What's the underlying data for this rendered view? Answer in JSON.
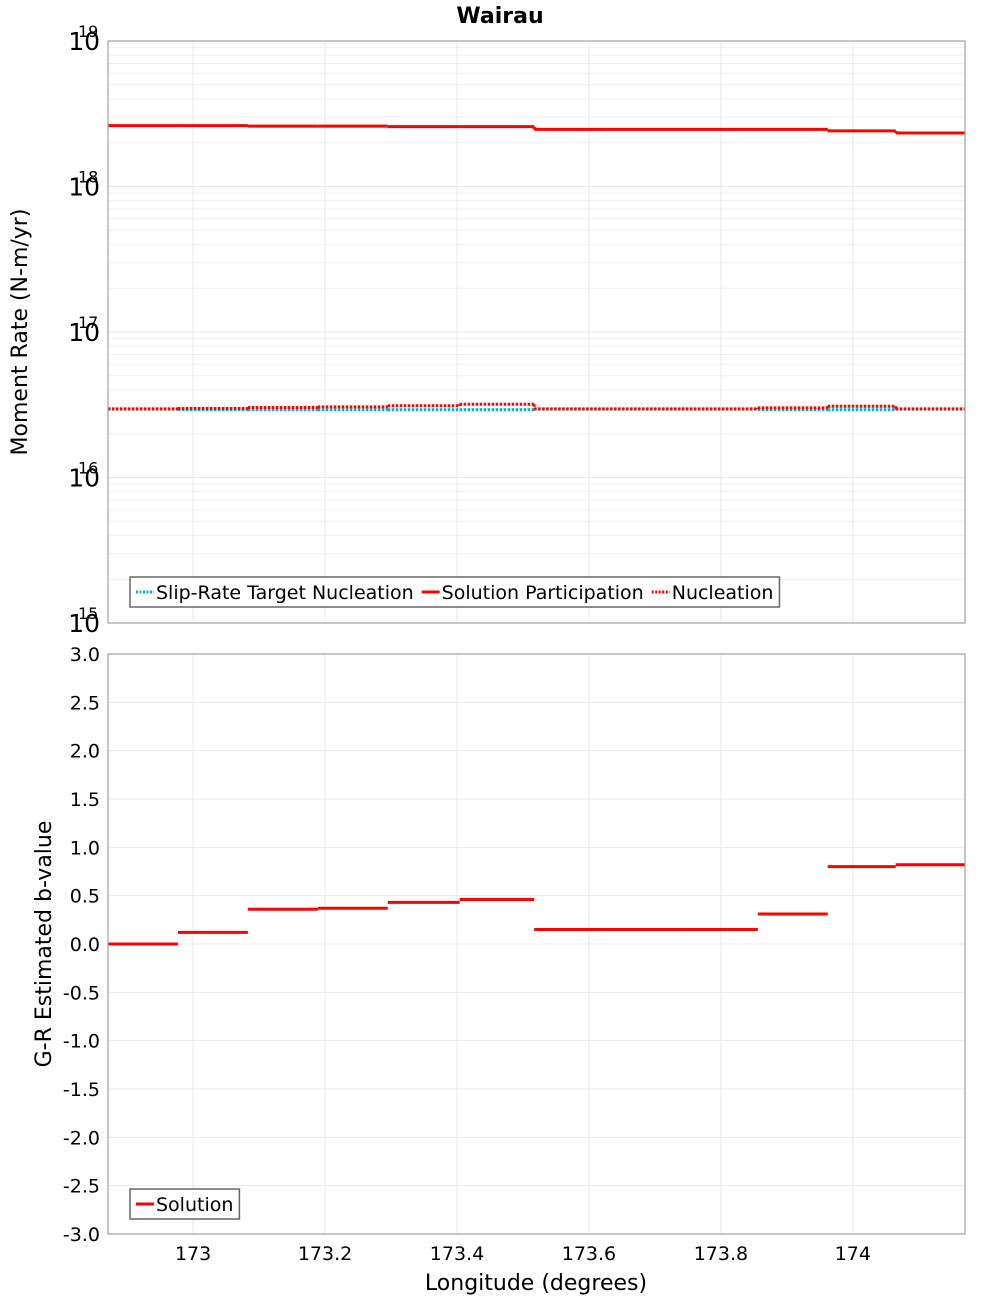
{
  "title": "Wairau",
  "chart_data": [
    {
      "type": "line",
      "subtype": "step",
      "title": "Wairau",
      "xlabel": "Longitude (degrees)",
      "ylabel": "Moment Rate (N-m/yr)",
      "yscale": "log",
      "xlim": [
        172.871,
        174.17
      ],
      "ylim": [
        1000000000000000.0,
        1e+19
      ],
      "y_ticks": [
        {
          "base": "10",
          "exp": "15",
          "value": 1000000000000000.0
        },
        {
          "base": "10",
          "exp": "16",
          "value": 1e+16
        },
        {
          "base": "10",
          "exp": "17",
          "value": 1e+17
        },
        {
          "base": "10",
          "exp": "18",
          "value": 1e+18
        },
        {
          "base": "10",
          "exp": "19",
          "value": 1e+19
        }
      ],
      "grid": true,
      "legend_position": "lower left",
      "bin_edges": [
        172.871,
        172.977,
        173.083,
        173.189,
        173.295,
        173.404,
        173.517,
        173.626,
        173.741,
        173.856,
        173.962,
        174.065,
        174.17
      ],
      "series": [
        {
          "name": "Slip-Rate Target Nucleation",
          "color": "#00b4c8",
          "style": "dotted",
          "values": [
            2.95e+16,
            2.93e+16,
            2.92e+16,
            2.92e+16,
            2.92e+16,
            2.92e+16,
            2.95e+16,
            2.95e+16,
            2.95e+16,
            2.93e+16,
            2.92e+16,
            2.95e+16
          ]
        },
        {
          "name": "Solution Participation",
          "color": "#ff0000",
          "style": "solid",
          "values": [
            2.62e+18,
            2.62e+18,
            2.6e+18,
            2.6e+18,
            2.58e+18,
            2.58e+18,
            2.47e+18,
            2.47e+18,
            2.47e+18,
            2.47e+18,
            2.41e+18,
            2.33e+18
          ]
        },
        {
          "name": "Nucleation",
          "color": "#ff0000",
          "style": "dotted",
          "values": [
            2.96e+16,
            2.98e+16,
            3.03e+16,
            3.06e+16,
            3.11e+16,
            3.19e+16,
            2.96e+16,
            2.96e+16,
            2.96e+16,
            3.01e+16,
            3.09e+16,
            2.96e+16
          ]
        }
      ]
    },
    {
      "type": "line",
      "subtype": "step",
      "title": "",
      "xlabel": "Longitude (degrees)",
      "ylabel": "G-R Estimated b-value",
      "xlim": [
        172.871,
        174.17
      ],
      "ylim": [
        -3.0,
        3.0
      ],
      "x_ticks": [
        {
          "label": "173",
          "value": 173.0
        },
        {
          "label": "173.2",
          "value": 173.2
        },
        {
          "label": "173.4",
          "value": 173.4
        },
        {
          "label": "173.6",
          "value": 173.6
        },
        {
          "label": "173.8",
          "value": 173.8
        },
        {
          "label": "174",
          "value": 174.0
        }
      ],
      "y_ticks": [
        {
          "label": "3.0",
          "value": 3.0
        },
        {
          "label": "2.5",
          "value": 2.5
        },
        {
          "label": "2.0",
          "value": 2.0
        },
        {
          "label": "1.5",
          "value": 1.5
        },
        {
          "label": "1.0",
          "value": 1.0
        },
        {
          "label": "0.5",
          "value": 0.5
        },
        {
          "label": "0.0",
          "value": 0.0
        },
        {
          "label": "-0.5",
          "value": -0.5
        },
        {
          "label": "-1.0",
          "value": -1.0
        },
        {
          "label": "-1.5",
          "value": -1.5
        },
        {
          "label": "-2.0",
          "value": -2.0
        },
        {
          "label": "-2.5",
          "value": -2.5
        },
        {
          "label": "-3.0",
          "value": -3.0
        }
      ],
      "grid": true,
      "legend_position": "lower left",
      "bin_edges": [
        172.871,
        172.977,
        173.083,
        173.189,
        173.295,
        173.404,
        173.517,
        173.626,
        173.741,
        173.856,
        173.962,
        174.065,
        174.17
      ],
      "series": [
        {
          "name": "Solution",
          "color": "#ff0000",
          "style": "solid",
          "values": [
            0.0,
            0.12,
            0.36,
            0.37,
            0.43,
            0.46,
            0.15,
            0.15,
            0.15,
            0.31,
            0.8,
            0.82
          ]
        }
      ]
    }
  ],
  "colors": {
    "accent_red": "#ff0000",
    "target_cyan": "#00b4c8",
    "grid": "#e8e8e8",
    "frame": "#a0a0a0"
  }
}
